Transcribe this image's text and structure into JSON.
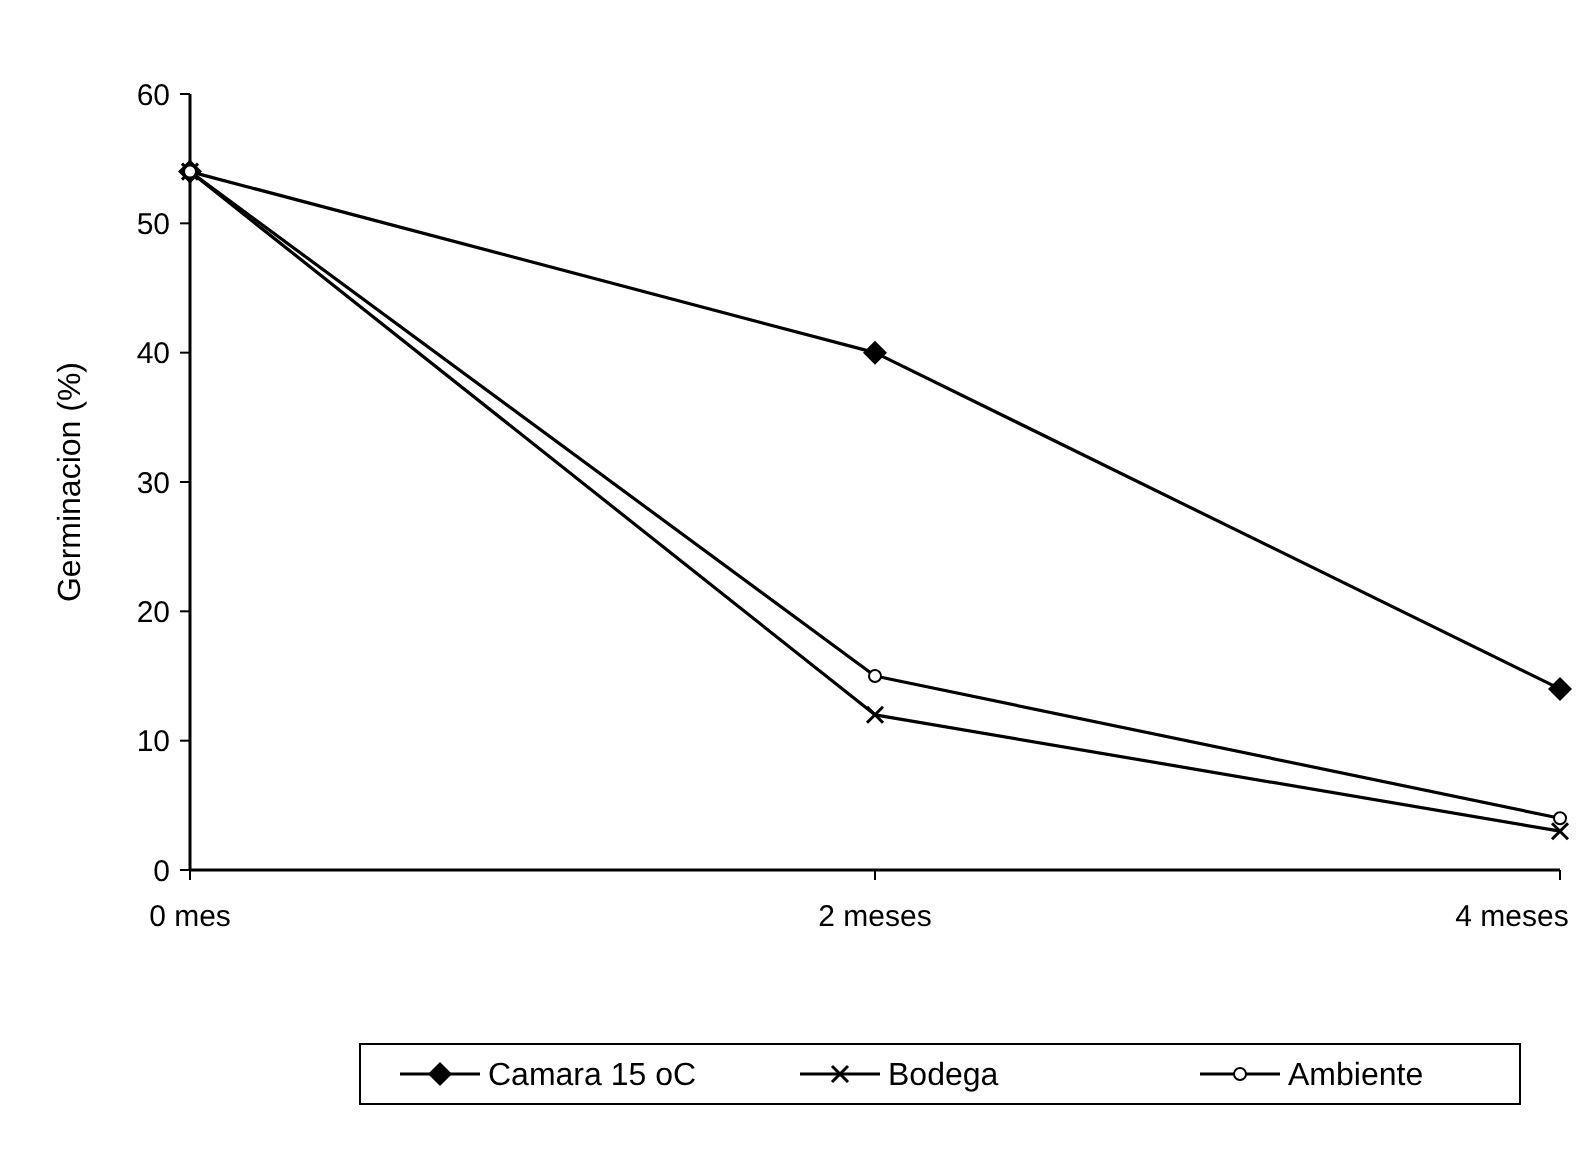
{
  "chart_data": {
    "type": "line",
    "ylabel": "Germinacion (%)",
    "categories": [
      "0 mes",
      "2 meses",
      "4 meses"
    ],
    "series": [
      {
        "name": "Camara 15 oC",
        "color": "#000000",
        "marker": "diamond",
        "values": [
          54,
          40,
          14
        ]
      },
      {
        "name": "Bodega",
        "color": "#000000",
        "marker": "cross",
        "values": [
          54,
          12,
          3
        ]
      },
      {
        "name": "Ambiente",
        "color": "#000000",
        "marker": "circle",
        "values": [
          54,
          15,
          4
        ]
      }
    ],
    "ylim": [
      0,
      60
    ],
    "yticks": [
      0,
      10,
      20,
      30,
      40,
      50,
      60
    ],
    "grid": false,
    "legend": "bottom"
  }
}
